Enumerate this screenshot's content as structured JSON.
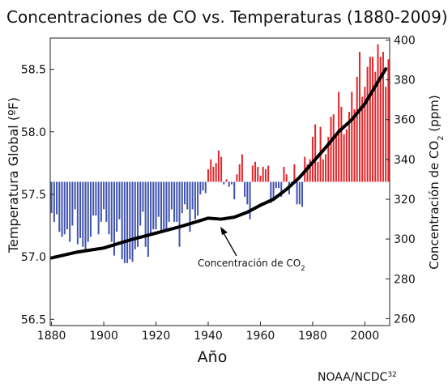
{
  "chart_data": {
    "type": "bar",
    "title": "Concentraciones de CO  vs. Temperaturas (1880-2009)",
    "xlabel": "Año",
    "ylabel_left": "Temperatura Global (ºF)",
    "ylabel_right_main": "Concentración de CO",
    "ylabel_right_sub": "2",
    "ylabel_right_end": " (ppm)",
    "annotation_main": "Concentración de CO",
    "annotation_sub": "2",
    "source_main": "NOAA/NCDC",
    "source_sup": "32",
    "baseline": 57.6,
    "xlim": [
      1879.5,
      2009.5
    ],
    "ylim_left": [
      56.45,
      58.75
    ],
    "ylim_right": [
      256.5,
      401
    ],
    "x_ticks": [
      "1880",
      "1900",
      "1920",
      "1940",
      "1960",
      "1980",
      "2000"
    ],
    "y_left_ticks": [
      "56.5",
      "57.0",
      "57.5",
      "58.0",
      "58.5"
    ],
    "y_right_ticks": [
      "260",
      "280",
      "300",
      "320",
      "340",
      "360",
      "380",
      "400"
    ],
    "colors": {
      "above": "#e0262b",
      "below": "#3f53b0",
      "co2_line": "#000000"
    },
    "series": [
      {
        "name": "Temperatura Global",
        "unit": "ºF",
        "years": [
          1880,
          1881,
          1882,
          1883,
          1884,
          1885,
          1886,
          1887,
          1888,
          1889,
          1890,
          1891,
          1892,
          1893,
          1894,
          1895,
          1896,
          1897,
          1898,
          1899,
          1900,
          1901,
          1902,
          1903,
          1904,
          1905,
          1906,
          1907,
          1908,
          1909,
          1910,
          1911,
          1912,
          1913,
          1914,
          1915,
          1916,
          1917,
          1918,
          1919,
          1920,
          1921,
          1922,
          1923,
          1924,
          1925,
          1926,
          1927,
          1928,
          1929,
          1930,
          1931,
          1932,
          1933,
          1934,
          1935,
          1936,
          1937,
          1938,
          1939,
          1940,
          1941,
          1942,
          1943,
          1944,
          1945,
          1946,
          1947,
          1948,
          1949,
          1950,
          1951,
          1952,
          1953,
          1954,
          1955,
          1956,
          1957,
          1958,
          1959,
          1960,
          1961,
          1962,
          1963,
          1964,
          1965,
          1966,
          1967,
          1968,
          1969,
          1970,
          1971,
          1972,
          1973,
          1974,
          1975,
          1976,
          1977,
          1978,
          1979,
          1980,
          1981,
          1982,
          1983,
          1984,
          1985,
          1986,
          1987,
          1988,
          1989,
          1990,
          1991,
          1992,
          1993,
          1994,
          1995,
          1996,
          1997,
          1998,
          1999,
          2000,
          2001,
          2002,
          2003,
          2004,
          2005,
          2006,
          2007,
          2008,
          2009
        ],
        "values": [
          57.35,
          57.28,
          57.34,
          57.2,
          57.16,
          57.18,
          57.22,
          57.12,
          57.25,
          57.38,
          57.1,
          57.15,
          57.08,
          57.06,
          57.12,
          57.16,
          57.33,
          57.33,
          57.18,
          57.28,
          57.38,
          57.28,
          57.18,
          57.12,
          57.01,
          57.2,
          57.3,
          56.98,
          56.95,
          56.95,
          56.98,
          56.96,
          57.06,
          57.08,
          57.25,
          57.36,
          57.08,
          57.0,
          57.18,
          57.22,
          57.22,
          57.32,
          57.2,
          57.22,
          57.22,
          57.28,
          57.38,
          57.28,
          57.28,
          57.08,
          57.35,
          57.42,
          57.38,
          57.2,
          57.38,
          57.3,
          57.33,
          57.5,
          57.53,
          57.51,
          57.7,
          57.78,
          57.72,
          57.75,
          57.85,
          57.8,
          57.58,
          57.62,
          57.56,
          57.58,
          57.46,
          57.66,
          57.74,
          57.82,
          57.48,
          57.42,
          57.3,
          57.73,
          57.76,
          57.72,
          57.65,
          57.72,
          57.7,
          57.73,
          57.43,
          57.46,
          57.55,
          57.55,
          57.48,
          57.72,
          57.66,
          57.5,
          57.56,
          57.74,
          57.42,
          57.42,
          57.4,
          57.8,
          57.74,
          57.78,
          57.96,
          58.06,
          57.76,
          58.04,
          57.78,
          57.82,
          57.96,
          58.12,
          58.14,
          57.98,
          58.32,
          58.2,
          57.98,
          58.02,
          58.16,
          58.32,
          58.18,
          58.44,
          58.64,
          58.28,
          58.36,
          58.52,
          58.6,
          58.6,
          58.48,
          58.7,
          58.6,
          58.64,
          58.36,
          58.58
        ]
      },
      {
        "name": "Concentración de CO2",
        "unit": "ppm",
        "years": [
          1880,
          1890,
          1900,
          1910,
          1920,
          1930,
          1940,
          1945,
          1950,
          1955,
          1960,
          1965,
          1970,
          1975,
          1980,
          1985,
          1990,
          1995,
          2000,
          2005,
          2008
        ],
        "values": [
          290.5,
          293.5,
          295.5,
          299.5,
          303,
          306.5,
          310.5,
          310,
          311,
          313.5,
          317,
          320,
          325,
          331,
          338.5,
          346,
          354,
          360,
          368,
          379,
          385.5
        ]
      }
    ]
  }
}
